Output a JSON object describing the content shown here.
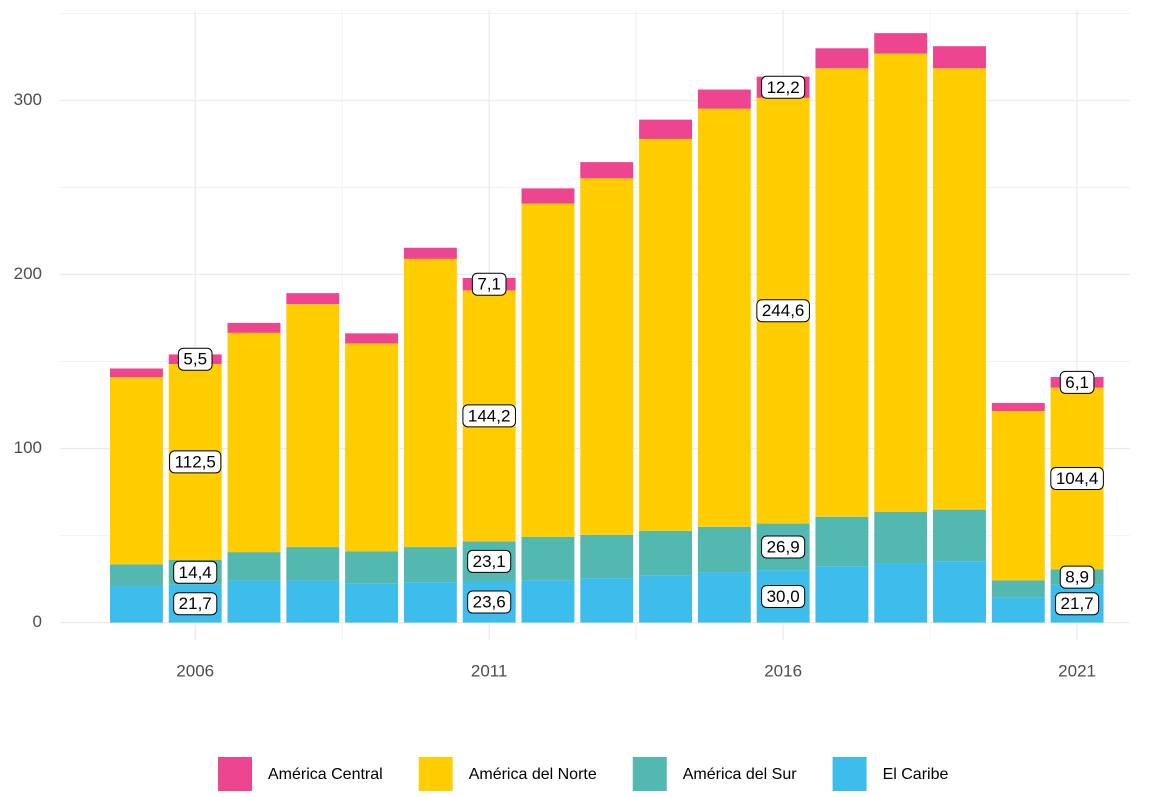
{
  "chart_data": {
    "type": "stacked_bar",
    "x": [
      2005,
      2006,
      2007,
      2008,
      2009,
      2010,
      2011,
      2012,
      2013,
      2014,
      2015,
      2016,
      2017,
      2018,
      2019,
      2020,
      2021
    ],
    "xlim": [
      2003.7,
      2021.9
    ],
    "xticks": [
      2006,
      2011,
      2016,
      2021
    ],
    "ylim": [
      -10,
      352
    ],
    "yticks": [
      0,
      100,
      200,
      300
    ],
    "grid": true,
    "legend": "bottom",
    "series": [
      {
        "name": "América Central",
        "color": "#ee4591",
        "values": [
          5,
          5.5,
          5.7,
          6.3,
          5.8,
          6.4,
          7.1,
          8.7,
          9.3,
          11.1,
          11,
          12.2,
          11.5,
          11.7,
          12.7,
          4.6,
          6.1
        ],
        "value_labels": [
          null,
          "5,5",
          null,
          null,
          null,
          null,
          "7,1",
          null,
          null,
          null,
          null,
          "12,2",
          null,
          null,
          null,
          null,
          "6,1"
        ]
      },
      {
        "name": "América del Norte",
        "color": "#ffcd00",
        "values": [
          107.5,
          112.5,
          126,
          139.6,
          119.4,
          165.6,
          144.2,
          191.6,
          204.9,
          225.2,
          240.3,
          244.6,
          257.7,
          263.3,
          253.6,
          97.3,
          104.4
        ],
        "value_labels": [
          null,
          "112,5",
          null,
          null,
          null,
          null,
          "144,2",
          null,
          null,
          null,
          null,
          "244,6",
          null,
          null,
          null,
          null,
          "104,4"
        ]
      },
      {
        "name": "América del Sur",
        "color": "#52b8b0",
        "values": [
          12.5,
          14.4,
          16.5,
          19.4,
          18.4,
          20.2,
          23.1,
          24.9,
          24.9,
          25.5,
          26,
          26.9,
          28.4,
          29.5,
          29.6,
          9.8,
          8.9
        ],
        "value_labels": [
          null,
          "14,4",
          null,
          null,
          null,
          null,
          "23,1",
          null,
          null,
          null,
          null,
          "26,9",
          null,
          null,
          null,
          null,
          "8,9"
        ]
      },
      {
        "name": "El Caribe",
        "color": "#3dbdeb",
        "values": [
          21,
          21.7,
          24,
          24,
          22.6,
          23.2,
          23.6,
          24.3,
          25.5,
          27.2,
          29,
          30.0,
          32.4,
          34.2,
          35.3,
          14.5,
          21.7
        ],
        "value_labels": [
          null,
          "21,7",
          null,
          null,
          null,
          null,
          "23,6",
          null,
          null,
          null,
          null,
          "30,0",
          null,
          null,
          null,
          null,
          "21,7"
        ]
      }
    ]
  }
}
